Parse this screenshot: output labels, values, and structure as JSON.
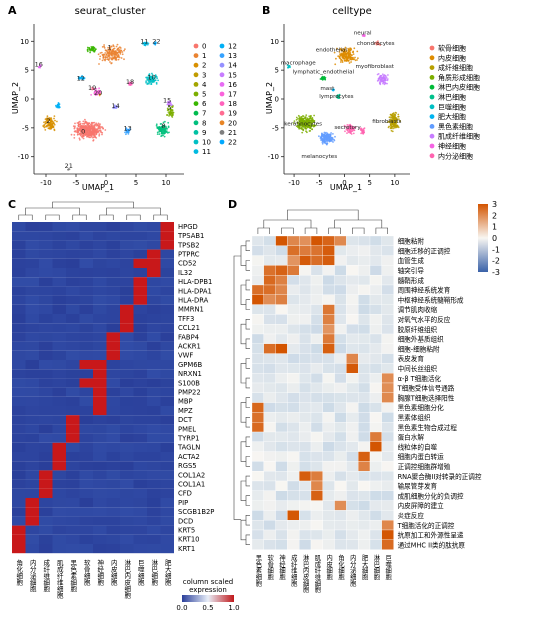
{
  "panels": {
    "A": {
      "letter": "A",
      "title": "seurat_cluster",
      "xlabel": "UMAP_1",
      "ylabel": "UMAP_2",
      "xticks": [
        "-10",
        "-5",
        "0",
        "5",
        "10"
      ],
      "xtick_values": [
        -10,
        -5,
        0,
        5,
        10
      ],
      "yticks": [
        "10",
        "5",
        "0",
        "-5",
        "-10"
      ],
      "ytick_values": [
        10,
        5,
        0,
        -5,
        -10
      ],
      "xlim": [
        -12,
        13
      ],
      "ylim": [
        -13,
        13
      ],
      "legend": [
        "0",
        "1",
        "2",
        "3",
        "4",
        "5",
        "6",
        "7",
        "8",
        "9",
        "10",
        "11",
        "12",
        "13",
        "14",
        "15",
        "16",
        "17",
        "18",
        "19",
        "20",
        "21",
        "22"
      ],
      "legend_colors": [
        "#f8766d",
        "#ea8331",
        "#d89000",
        "#c09b00",
        "#a3a500",
        "#7cae00",
        "#39b600",
        "#00bb4e",
        "#00bf7d",
        "#00c1a3",
        "#00bfc4",
        "#00bae0",
        "#00b0f6",
        "#35a2ff",
        "#9590ff",
        "#c77cff",
        "#e76bf3",
        "#fa62db",
        "#ff62bc",
        "#ff6c91",
        "#e88526",
        "#7f7f7f",
        "#00a9ff"
      ],
      "cluster_labels": [
        {
          "t": "1",
          "x": 0.6,
          "y": 8.6
        },
        {
          "t": "11",
          "x": 6.4,
          "y": 9.6
        },
        {
          "t": "22",
          "x": 8.4,
          "y": 9.6
        },
        {
          "t": "16",
          "x": -11.2,
          "y": 5.6
        },
        {
          "t": "12",
          "x": -4.2,
          "y": 3.2
        },
        {
          "t": "19",
          "x": -2.3,
          "y": 1.6
        },
        {
          "t": "20",
          "x": -1.3,
          "y": 0.7
        },
        {
          "t": "18",
          "x": 4.0,
          "y": 2.6
        },
        {
          "t": "10",
          "x": 7.6,
          "y": 3.4
        },
        {
          "t": "14",
          "x": 1.6,
          "y": -1.6
        },
        {
          "t": "15",
          "x": 10.2,
          "y": -0.6
        },
        {
          "t": "5",
          "x": 10.6,
          "y": -1.8
        },
        {
          "t": "2",
          "x": -9.6,
          "y": -4.2
        },
        {
          "t": "13",
          "x": 3.6,
          "y": -5.5
        },
        {
          "t": "0",
          "x": -3.8,
          "y": -6.0
        },
        {
          "t": "8",
          "x": 9.6,
          "y": -5.0
        },
        {
          "t": "21",
          "x": -6.2,
          "y": -12.0
        }
      ]
    },
    "B": {
      "letter": "B",
      "title": "celltype",
      "xlabel": "UMAP_1",
      "ylabel": "UMAP_2",
      "xticks": [
        "-10",
        "-5",
        "0",
        "5",
        "10"
      ],
      "xtick_values": [
        -10,
        -5,
        0,
        5,
        10
      ],
      "yticks": [
        "10",
        "5",
        "0",
        "-5",
        "-10"
      ],
      "ytick_values": [
        10,
        5,
        0,
        -5,
        -10
      ],
      "xlim": [
        -12,
        13
      ],
      "ylim": [
        -13,
        13
      ],
      "legend": [
        "软骨细胞",
        "内皮细胞",
        "成纤维细胞",
        "角质形成细胞",
        "淋巴内皮细胞",
        "淋巴细胞",
        "巨噬细胞",
        "肥大细胞",
        "黑色素细胞",
        "肌成纤维细胞",
        "神经细胞",
        "内分泌细胞"
      ],
      "legend_colors": [
        "#f8766d",
        "#de8c00",
        "#b79f00",
        "#7cae00",
        "#00ba38",
        "#00c08b",
        "#00bfc4",
        "#00b4f0",
        "#619cff",
        "#c77cff",
        "#f564e3",
        "#ff64b0"
      ],
      "cell_labels": [
        {
          "t": "neural",
          "x": 3.6,
          "y": 11.2
        },
        {
          "t": "chondrocytes",
          "x": 6.2,
          "y": 9.4
        },
        {
          "t": "endothelial",
          "x": -2.6,
          "y": 8.2
        },
        {
          "t": "macrophage",
          "x": -9.2,
          "y": 6.0
        },
        {
          "t": "lymphatic_endothelial",
          "x": -4.2,
          "y": 4.4
        },
        {
          "t": "myofibroblast",
          "x": 6.0,
          "y": 5.4
        },
        {
          "t": "mast",
          "x": -3.4,
          "y": 1.6
        },
        {
          "t": "lymprocytes",
          "x": -1.6,
          "y": 0.2
        },
        {
          "t": "fibroblasts",
          "x": 8.4,
          "y": -4.2
        },
        {
          "t": "keratinocytes",
          "x": -8.2,
          "y": -4.6
        },
        {
          "t": "secretory",
          "x": 0.6,
          "y": -5.2
        },
        {
          "t": "melanocytes",
          "x": -5.0,
          "y": -10.2
        }
      ]
    },
    "C": {
      "letter": "C",
      "rows": [
        "HPGD",
        "TPSAB1",
        "TPSB2",
        "PTPRC",
        "CD52",
        "IL32",
        "HLA-DPB1",
        "HLA-DPA1",
        "HLA-DRA",
        "MMRN1",
        "TFF3",
        "CCL21",
        "FABP4",
        "ACKR1",
        "VWF",
        "GPM6B",
        "NRXN1",
        "S100B",
        "PMP22",
        "MBP",
        "MPZ",
        "DCT",
        "PMEL",
        "TYRP1",
        "TAGLN",
        "ACTA2",
        "RGS5",
        "COL1A2",
        "COL1A1",
        "CFD",
        "PIP",
        "SCGB1B2P",
        "DCD",
        "KRT5",
        "KRT10",
        "KRT1"
      ],
      "cols": [
        "角化细胞",
        "内分泌细胞",
        "成纤维细胞",
        "肌成纤维细胞",
        "黑色素细胞",
        "软骨细胞",
        "神经细胞",
        "内皮细胞",
        "淋巴内皮细胞",
        "巨噬细胞",
        "淋巴细胞",
        "肥大细胞"
      ],
      "hot": [
        [
          0,
          11
        ],
        [
          1,
          11
        ],
        [
          2,
          11
        ],
        [
          3,
          10
        ],
        [
          4,
          10
        ],
        [
          4,
          9
        ],
        [
          5,
          10
        ],
        [
          6,
          9
        ],
        [
          7,
          9
        ],
        [
          8,
          9
        ],
        [
          9,
          8
        ],
        [
          10,
          8
        ],
        [
          11,
          8
        ],
        [
          12,
          7
        ],
        [
          13,
          7
        ],
        [
          14,
          7
        ],
        [
          15,
          6
        ],
        [
          15,
          5
        ],
        [
          16,
          6
        ],
        [
          17,
          6
        ],
        [
          17,
          5
        ],
        [
          18,
          6
        ],
        [
          19,
          6
        ],
        [
          20,
          6
        ],
        [
          21,
          4
        ],
        [
          22,
          4
        ],
        [
          23,
          4
        ],
        [
          24,
          3
        ],
        [
          25,
          3
        ],
        [
          26,
          3
        ],
        [
          27,
          2
        ],
        [
          28,
          2
        ],
        [
          29,
          2
        ],
        [
          30,
          1
        ],
        [
          31,
          1
        ],
        [
          32,
          1
        ],
        [
          33,
          0
        ],
        [
          34,
          0
        ],
        [
          35,
          0
        ]
      ],
      "legend_title": "column scaled",
      "legend_title2": "expression",
      "legend_ticks": [
        "0.0",
        "0.5",
        "1.0"
      ],
      "scale_colors": [
        "#2a3f9a",
        "#e8eef8",
        "#c0181a"
      ]
    },
    "D": {
      "letter": "D",
      "rows": [
        "细胞粘附",
        "细胞迁移的正调控",
        "血管生成",
        "轴突引导",
        "髓鞘形成",
        "周围神经系统发育",
        "中枢神经系统髓鞘形成",
        "调节肌肉收缩",
        "对氧气水平的反应",
        "胶原纤维组织",
        "细胞外基质组织",
        "细胞-细胞粘附",
        "表皮发育",
        "中间长丝组织",
        "α-β T细胞活化",
        "T细胞受体信号通路",
        "胸腺T细胞选择阳性",
        "黑色素细胞分化",
        "黑素体组织",
        "黑色素生物合成过程",
        "蛋白水解",
        "线粒体的自噬",
        "细胞内蛋白转运",
        "正调控细胞群增殖",
        "RNA聚合酶II对转录的正调控",
        "输尿管芽发育",
        "成肌细胞分化的负调控",
        "内皮屏障的建立",
        "炎症反应",
        "T细胞活化的正调控",
        "抗原加工和外源性呈递",
        "通过MHC II类的肽抗原"
      ],
      "cols": [
        "黑色素细胞",
        "软骨细胞",
        "神经细胞",
        "成纤维细胞",
        "淋巴内皮细胞",
        "肌成纤维细胞",
        "内皮细胞",
        "角化细胞",
        "内分泌细胞",
        "肥大细胞",
        "淋巴细胞",
        "巨噬细胞"
      ],
      "legend_ticks": [
        "3",
        "2",
        "1",
        "0",
        "-1",
        "-2",
        "-3"
      ],
      "legend_values": [
        3,
        2,
        1,
        0,
        -1,
        -2,
        -3
      ],
      "scale_colors": [
        "#3a62a8",
        "#f8f6f2",
        "#d35400"
      ]
    }
  }
}
